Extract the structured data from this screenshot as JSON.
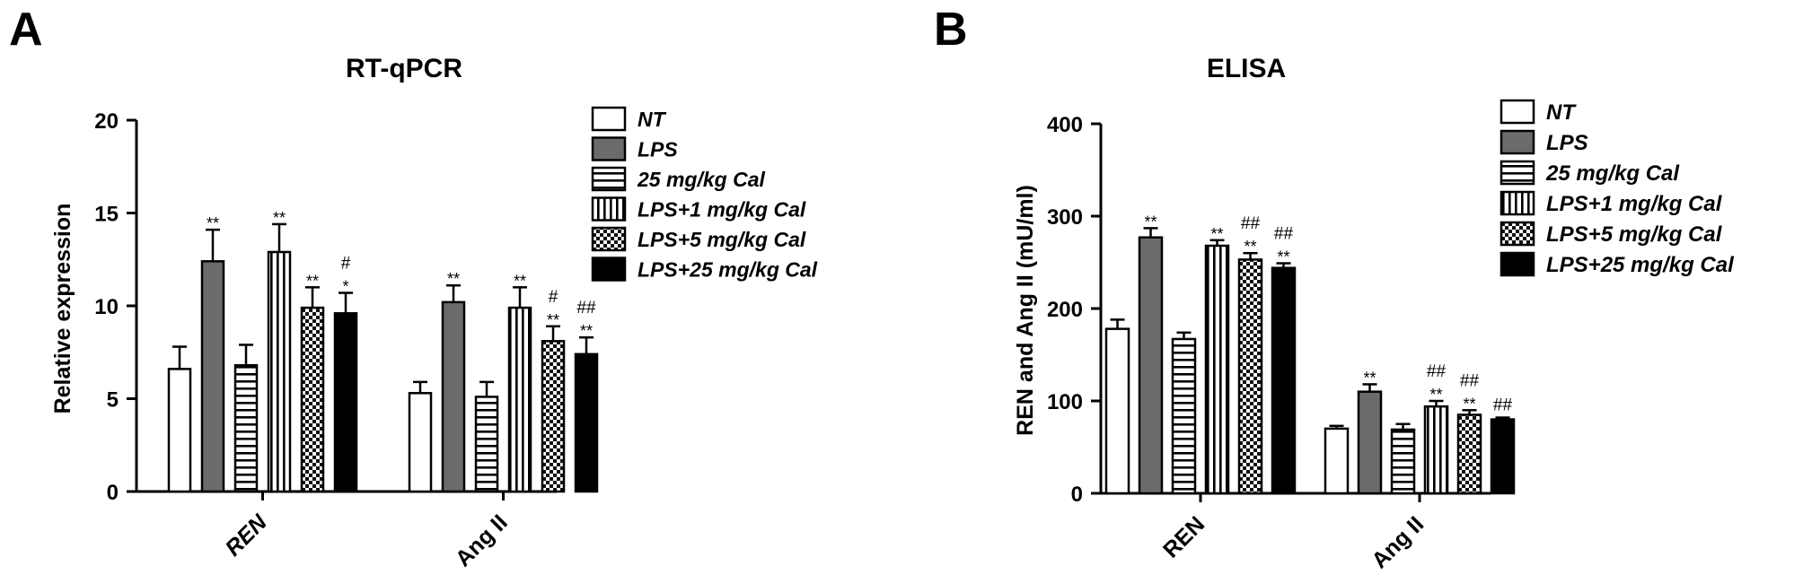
{
  "panels": [
    {
      "letter": "A",
      "chart_data": {
        "type": "bar",
        "title": "RT-qPCR",
        "ylabel": "Relative expression",
        "xlabel": "",
        "ylim": [
          0,
          20
        ],
        "yticks": [
          0,
          5,
          10,
          15,
          20
        ],
        "categories": [
          "REN",
          "Ang II"
        ],
        "category_italic": [
          true,
          false
        ],
        "series": [
          {
            "name": "NT",
            "values": [
              6.6,
              5.3
            ],
            "errors": [
              1.2,
              0.6
            ],
            "annotations": [
              "",
              ""
            ]
          },
          {
            "name": "LPS",
            "values": [
              12.4,
              10.2
            ],
            "errors": [
              1.7,
              0.9
            ],
            "annotations": [
              "**",
              "**"
            ]
          },
          {
            "name": "25 mg/kg Cal",
            "values": [
              6.8,
              5.1
            ],
            "errors": [
              1.1,
              0.8
            ],
            "annotations": [
              "",
              ""
            ]
          },
          {
            "name": "LPS+1 mg/kg Cal",
            "values": [
              12.9,
              9.9
            ],
            "errors": [
              1.5,
              1.1
            ],
            "annotations": [
              "**",
              "**"
            ]
          },
          {
            "name": "LPS+5 mg/kg Cal",
            "values": [
              9.9,
              8.1
            ],
            "errors": [
              1.1,
              0.8
            ],
            "annotations": [
              "**",
              "#\n**"
            ]
          },
          {
            "name": "LPS+25 mg/kg Cal",
            "values": [
              9.6,
              7.4
            ],
            "errors": [
              1.1,
              0.9
            ],
            "annotations": [
              "#\n*",
              "##\n**"
            ]
          }
        ],
        "legend": "right"
      }
    },
    {
      "letter": "B",
      "chart_data": {
        "type": "bar",
        "title": "ELISA",
        "ylabel": "REN and Ang II  (mU/ml)",
        "xlabel": "",
        "ylim": [
          0,
          400
        ],
        "yticks": [
          0,
          100,
          200,
          300,
          400
        ],
        "categories": [
          "REN",
          "Ang II"
        ],
        "category_italic": [
          false,
          false
        ],
        "series": [
          {
            "name": "NT",
            "values": [
              178,
              70
            ],
            "errors": [
              10,
              3
            ],
            "annotations": [
              "",
              ""
            ]
          },
          {
            "name": "LPS",
            "values": [
              277,
              110
            ],
            "errors": [
              10,
              8
            ],
            "annotations": [
              "**",
              "**"
            ]
          },
          {
            "name": "25 mg/kg Cal",
            "values": [
              167,
              69
            ],
            "errors": [
              7,
              6
            ],
            "annotations": [
              "",
              ""
            ]
          },
          {
            "name": "LPS+1 mg/kg Cal",
            "values": [
              268,
              94
            ],
            "errors": [
              6,
              6
            ],
            "annotations": [
              "**",
              "##\n**"
            ]
          },
          {
            "name": "LPS+5 mg/kg Cal",
            "values": [
              253,
              85
            ],
            "errors": [
              7,
              5
            ],
            "annotations": [
              "##\n**",
              "##\n**"
            ]
          },
          {
            "name": "LPS+25 mg/kg Cal",
            "values": [
              244,
              80
            ],
            "errors": [
              5,
              2
            ],
            "annotations": [
              "##\n**",
              "##"
            ]
          }
        ],
        "legend": "right"
      }
    }
  ]
}
